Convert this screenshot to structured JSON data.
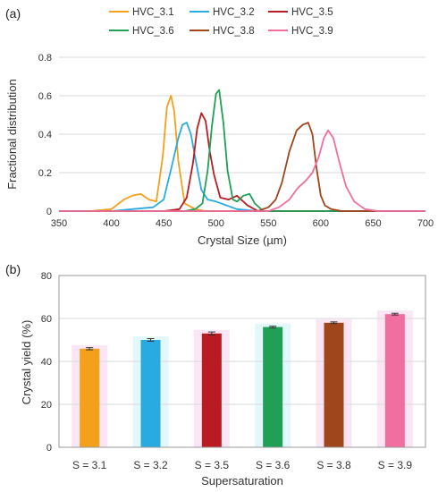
{
  "panels": [
    {
      "label": "(a)"
    },
    {
      "label": "(b)"
    }
  ],
  "chart_data": [
    {
      "type": "line",
      "xlabel": "Crystal Size (µm)",
      "ylabel": "Fractional distribution",
      "xlim": [
        350,
        700
      ],
      "ylim": [
        0,
        0.8
      ],
      "xticks": [
        350,
        400,
        450,
        500,
        550,
        600,
        650,
        700
      ],
      "xtick_labels": [
        "350",
        "400",
        "450",
        "500",
        "550",
        "600",
        "650",
        "700"
      ],
      "yticks": [
        0,
        0.2,
        0.4,
        0.6,
        0.8
      ],
      "ytick_labels": [
        "0",
        "0.2",
        "0.4",
        "0.6",
        "0.8"
      ],
      "legend_position": "top",
      "grid": "horizontal",
      "series": [
        {
          "name": "HVC_3.1",
          "color": "#f5a01a",
          "x": [
            350,
            380,
            400,
            412,
            420,
            428,
            436,
            443,
            449,
            453,
            457,
            460,
            464,
            470,
            480,
            490,
            500,
            520,
            540,
            700
          ],
          "y": [
            0,
            0,
            0.01,
            0.06,
            0.08,
            0.09,
            0.06,
            0.05,
            0.28,
            0.54,
            0.6,
            0.52,
            0.26,
            0.04,
            0.01,
            0,
            0,
            0,
            0,
            0
          ]
        },
        {
          "name": "HVC_3.2",
          "color": "#29abe2",
          "x": [
            350,
            400,
            420,
            440,
            450,
            458,
            464,
            468,
            472,
            476,
            480,
            486,
            492,
            500,
            510,
            520,
            540,
            700
          ],
          "y": [
            0,
            0,
            0.01,
            0.02,
            0.06,
            0.24,
            0.38,
            0.45,
            0.46,
            0.4,
            0.28,
            0.11,
            0.06,
            0.05,
            0.03,
            0.01,
            0,
            0
          ]
        },
        {
          "name": "HVC_3.5",
          "color": "#b81c22",
          "x": [
            350,
            450,
            465,
            472,
            478,
            482,
            486,
            490,
            494,
            498,
            504,
            512,
            520,
            530,
            540,
            700
          ],
          "y": [
            0,
            0,
            0.01,
            0.07,
            0.25,
            0.43,
            0.51,
            0.47,
            0.31,
            0.19,
            0.07,
            0.06,
            0.08,
            0.03,
            0,
            0
          ]
        },
        {
          "name": "HVC_3.6",
          "color": "#1fa055",
          "x": [
            350,
            470,
            480,
            487,
            492,
            496,
            500,
            503,
            507,
            511,
            516,
            520,
            526,
            532,
            537,
            545,
            700
          ],
          "y": [
            0,
            0,
            0.01,
            0.04,
            0.21,
            0.44,
            0.61,
            0.63,
            0.46,
            0.21,
            0.06,
            0.05,
            0.08,
            0.09,
            0.04,
            0,
            0
          ]
        },
        {
          "name": "HVC_3.8",
          "color": "#a0461c",
          "x": [
            350,
            540,
            550,
            557,
            563,
            570,
            577,
            583,
            588,
            592,
            596,
            600,
            604,
            610,
            620,
            700
          ],
          "y": [
            0,
            0,
            0.02,
            0.06,
            0.15,
            0.31,
            0.42,
            0.45,
            0.46,
            0.4,
            0.22,
            0.08,
            0.03,
            0.01,
            0,
            0
          ]
        },
        {
          "name": "HVC_3.9",
          "color": "#f06ea0",
          "x": [
            350,
            550,
            560,
            570,
            578,
            586,
            592,
            598,
            603,
            607,
            612,
            618,
            624,
            632,
            642,
            655,
            700
          ],
          "y": [
            0,
            0,
            0.02,
            0.06,
            0.12,
            0.16,
            0.2,
            0.28,
            0.38,
            0.42,
            0.38,
            0.25,
            0.13,
            0.05,
            0.01,
            0,
            0
          ]
        }
      ]
    },
    {
      "type": "bar",
      "xlabel": "Supersaturation",
      "ylabel": "Crystal yield (%)",
      "ylim": [
        0,
        80
      ],
      "yticks": [
        0,
        20,
        40,
        60,
        80
      ],
      "ytick_labels": [
        "0",
        "20",
        "40",
        "60",
        "80"
      ],
      "grid": "horizontal",
      "categories": [
        "S = 3.1",
        "S = 3.2",
        "S = 3.5",
        "S = 3.6",
        "S = 3.8",
        "S = 3.9"
      ],
      "values": [
        45.9,
        50.0,
        53.0,
        56.0,
        58.0,
        62.0
      ],
      "errors": [
        0.5,
        0.6,
        0.7,
        0.4,
        0.4,
        0.4
      ],
      "colors": [
        "#f5a01a",
        "#29abe2",
        "#b81c22",
        "#1fa055",
        "#a0461c",
        "#f06ea0"
      ],
      "shade_colors": [
        "#fbe6f5",
        "#e2f8fb",
        "#fbe6f5",
        "#e2f8fb",
        "#fbe6f5",
        "#fbe6f5"
      ]
    }
  ]
}
